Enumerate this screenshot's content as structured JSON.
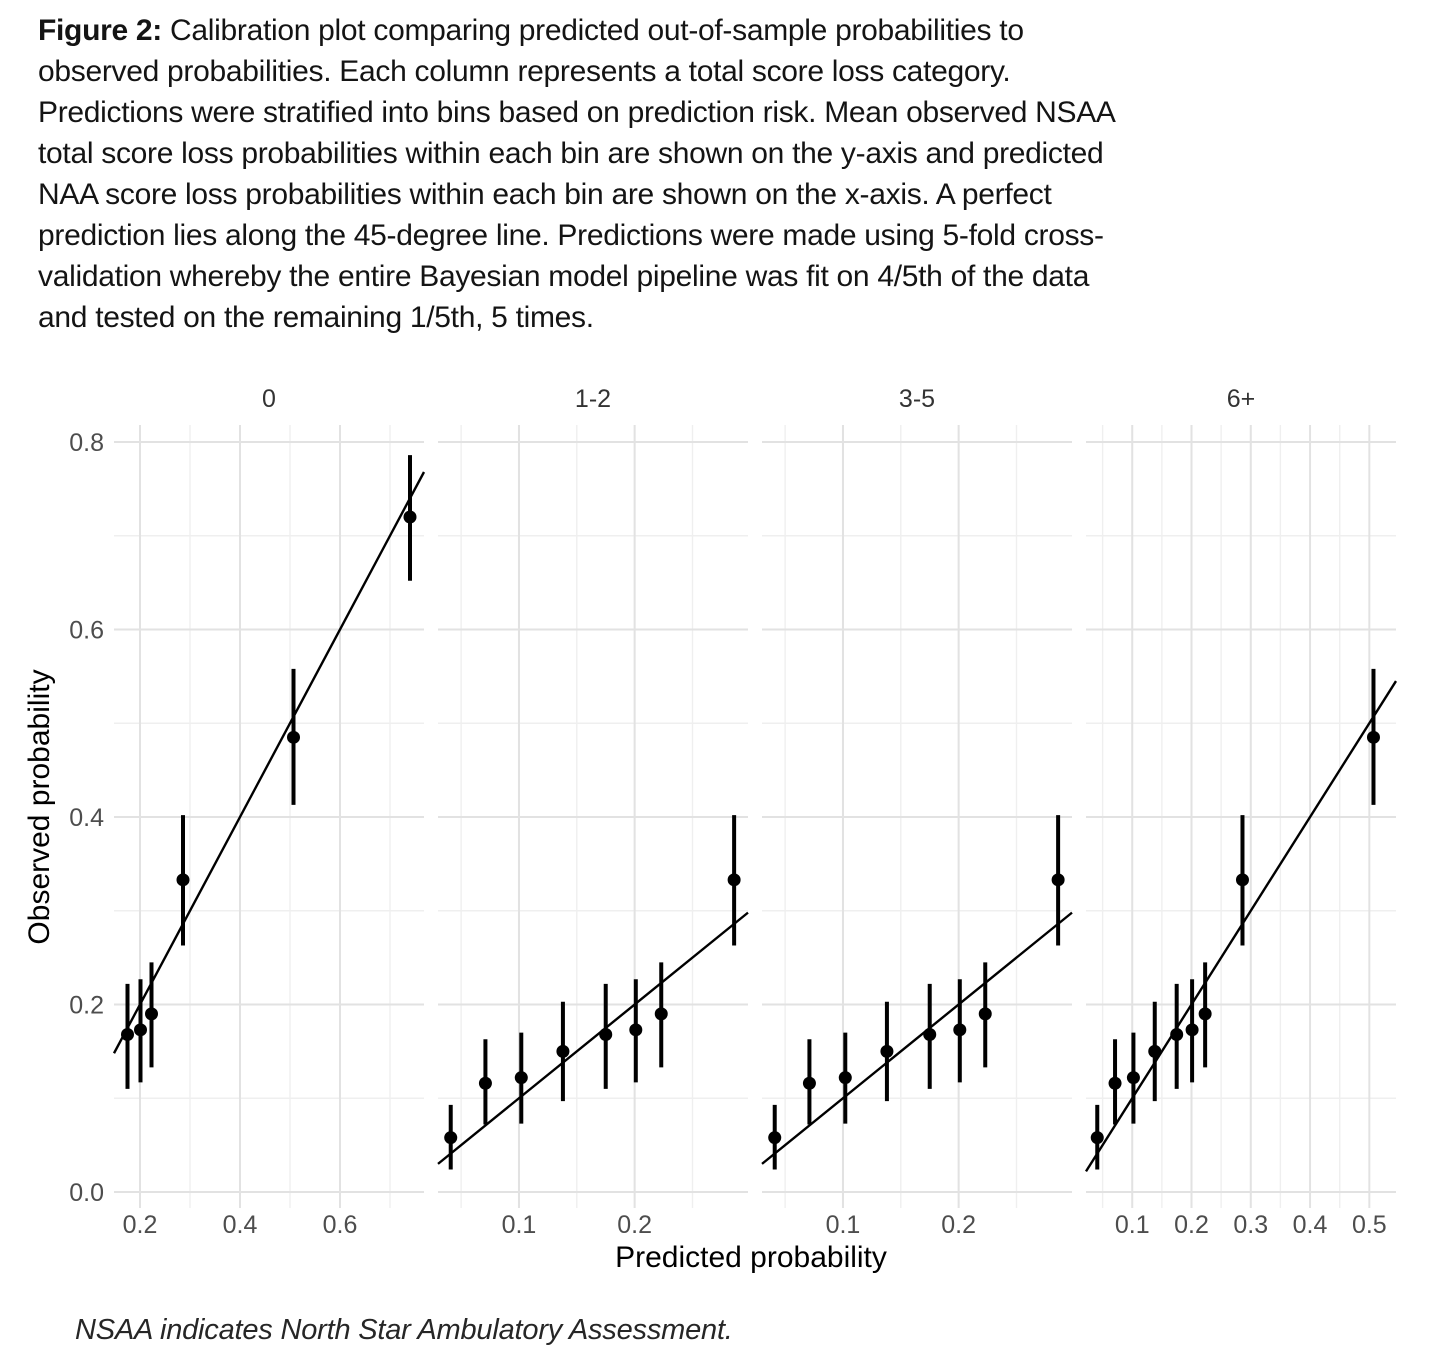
{
  "caption": {
    "label": "Figure 2:",
    "lines": [
      "Calibration plot comparing predicted out-of-sample probabilities to",
      "observed probabilities. Each column represents a total score loss category.",
      "Predictions were stratified into bins based on prediction risk. Mean observed NSAA",
      "total score loss probabilities within each bin are shown on the y-axis and predicted",
      "NAA score loss probabilities within each bin are shown on the x-axis. A perfect",
      "prediction lies along the 45-degree line. Predictions were made using 5-fold cross-",
      "validation whereby the entire Bayesian model pipeline was fit on 4/5th of the data",
      "and tested on the remaining 1/5th, 5 times."
    ]
  },
  "footnote": "NSAA indicates North Star Ambulatory Assessment.",
  "chart_data": {
    "type": "scatter",
    "title": "",
    "xlabel": "Predicted probability",
    "ylabel": "Observed probability",
    "facet_labels": [
      "0",
      "1-2",
      "3-5",
      "6+"
    ],
    "ylim": [
      -0.019,
      0.816
    ],
    "y_ticks": [
      0.0,
      0.2,
      0.4,
      0.6,
      0.8
    ],
    "y_minor": [
      0.1,
      0.3,
      0.5,
      0.7
    ],
    "grid": true,
    "legend": "none",
    "reference_line": "y = x (45-degree perfect-calibration line in each panel)",
    "error_bars": "vertical 95% interval per point",
    "colors": {
      "point": "#000000",
      "reference_line": "#000000",
      "grid_major": "#e2e2e2",
      "grid_minor": "#efefef",
      "tick_text": "#4d4d4d",
      "strip_text": "#333333",
      "axis_title": "#000000",
      "background": "#ffffff"
    },
    "panels": [
      {
        "label": "0",
        "xlim": [
          0.148,
          0.768
        ],
        "x_ticks": [
          0.2,
          0.4,
          0.6
        ],
        "x_minor": [
          0.3,
          0.5,
          0.7
        ],
        "points": [
          {
            "x": 0.175,
            "y": 0.168,
            "ci_low": 0.11,
            "ci_high": 0.222
          },
          {
            "x": 0.201,
            "y": 0.173,
            "ci_low": 0.117,
            "ci_high": 0.227
          },
          {
            "x": 0.223,
            "y": 0.19,
            "ci_low": 0.133,
            "ci_high": 0.245
          },
          {
            "x": 0.286,
            "y": 0.333,
            "ci_low": 0.263,
            "ci_high": 0.402
          },
          {
            "x": 0.507,
            "y": 0.485,
            "ci_low": 0.413,
            "ci_high": 0.558
          },
          {
            "x": 0.74,
            "y": 0.72,
            "ci_low": 0.652,
            "ci_high": 0.786
          }
        ]
      },
      {
        "label": "1-2",
        "xlim": [
          0.03,
          0.298
        ],
        "x_ticks": [
          0.1,
          0.2
        ],
        "x_minor": [
          0.05,
          0.15,
          0.25
        ],
        "points": [
          {
            "x": 0.041,
            "y": 0.058,
            "ci_low": 0.024,
            "ci_high": 0.093
          },
          {
            "x": 0.071,
            "y": 0.116,
            "ci_low": 0.072,
            "ci_high": 0.163
          },
          {
            "x": 0.102,
            "y": 0.122,
            "ci_low": 0.073,
            "ci_high": 0.17
          },
          {
            "x": 0.138,
            "y": 0.15,
            "ci_low": 0.097,
            "ci_high": 0.203
          },
          {
            "x": 0.175,
            "y": 0.168,
            "ci_low": 0.11,
            "ci_high": 0.222
          },
          {
            "x": 0.201,
            "y": 0.173,
            "ci_low": 0.117,
            "ci_high": 0.227
          },
          {
            "x": 0.223,
            "y": 0.19,
            "ci_low": 0.133,
            "ci_high": 0.245
          },
          {
            "x": 0.286,
            "y": 0.333,
            "ci_low": 0.263,
            "ci_high": 0.402
          }
        ]
      },
      {
        "label": "3-5",
        "xlim": [
          0.03,
          0.298
        ],
        "x_ticks": [
          0.1,
          0.2
        ],
        "x_minor": [
          0.05,
          0.15,
          0.25
        ],
        "points": [
          {
            "x": 0.041,
            "y": 0.058,
            "ci_low": 0.024,
            "ci_high": 0.093
          },
          {
            "x": 0.071,
            "y": 0.116,
            "ci_low": 0.072,
            "ci_high": 0.163
          },
          {
            "x": 0.102,
            "y": 0.122,
            "ci_low": 0.073,
            "ci_high": 0.17
          },
          {
            "x": 0.138,
            "y": 0.15,
            "ci_low": 0.097,
            "ci_high": 0.203
          },
          {
            "x": 0.175,
            "y": 0.168,
            "ci_low": 0.11,
            "ci_high": 0.222
          },
          {
            "x": 0.201,
            "y": 0.173,
            "ci_low": 0.117,
            "ci_high": 0.227
          },
          {
            "x": 0.223,
            "y": 0.19,
            "ci_low": 0.133,
            "ci_high": 0.245
          },
          {
            "x": 0.286,
            "y": 0.333,
            "ci_low": 0.263,
            "ci_high": 0.402
          }
        ]
      },
      {
        "label": "6+",
        "xlim": [
          0.022,
          0.545
        ],
        "x_ticks": [
          0.1,
          0.2,
          0.3,
          0.4,
          0.5
        ],
        "x_minor": [
          0.05,
          0.15,
          0.25,
          0.35,
          0.45
        ],
        "points": [
          {
            "x": 0.041,
            "y": 0.058,
            "ci_low": 0.024,
            "ci_high": 0.093
          },
          {
            "x": 0.071,
            "y": 0.116,
            "ci_low": 0.072,
            "ci_high": 0.163
          },
          {
            "x": 0.102,
            "y": 0.122,
            "ci_low": 0.073,
            "ci_high": 0.17
          },
          {
            "x": 0.138,
            "y": 0.15,
            "ci_low": 0.097,
            "ci_high": 0.203
          },
          {
            "x": 0.175,
            "y": 0.168,
            "ci_low": 0.11,
            "ci_high": 0.222
          },
          {
            "x": 0.201,
            "y": 0.173,
            "ci_low": 0.117,
            "ci_high": 0.227
          },
          {
            "x": 0.223,
            "y": 0.19,
            "ci_low": 0.133,
            "ci_high": 0.245
          },
          {
            "x": 0.286,
            "y": 0.333,
            "ci_low": 0.263,
            "ci_high": 0.402
          },
          {
            "x": 0.507,
            "y": 0.485,
            "ci_low": 0.413,
            "ci_high": 0.558
          }
        ]
      }
    ]
  }
}
